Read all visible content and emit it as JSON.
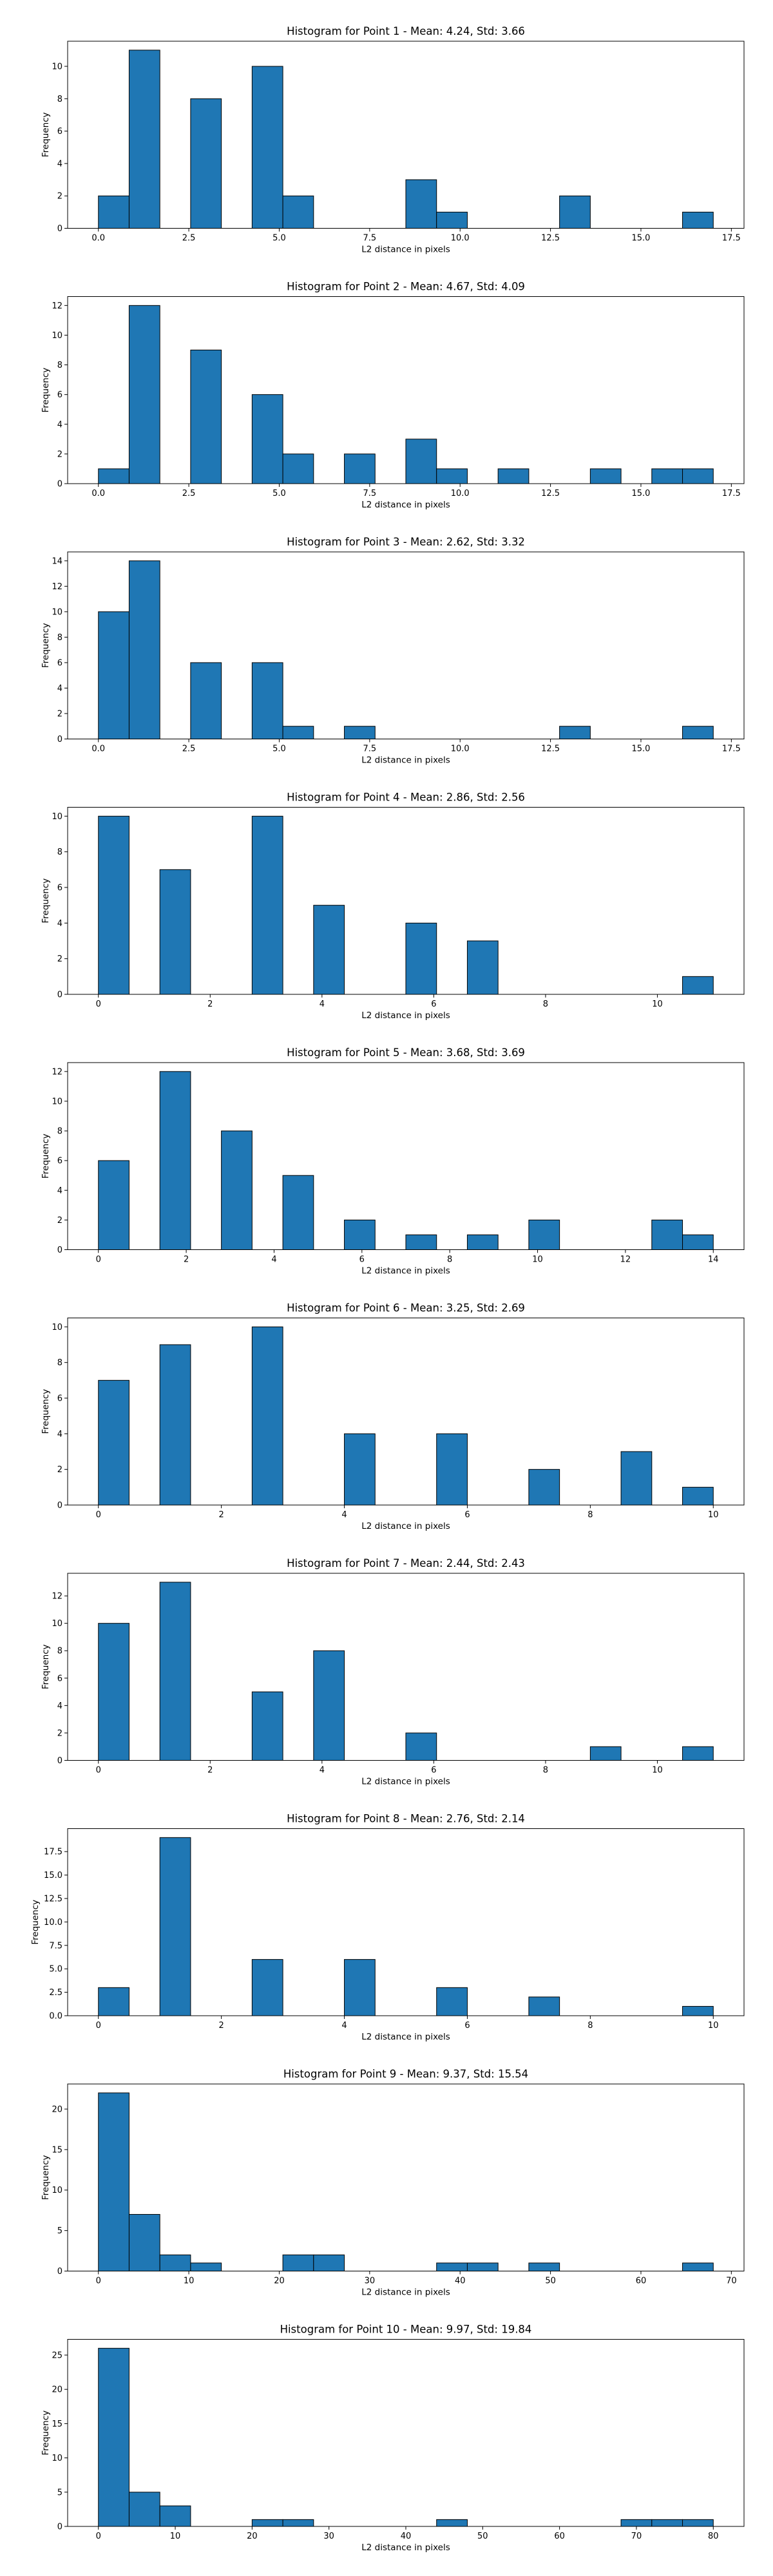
{
  "figure": {
    "background": "#ffffff",
    "bar_color": "#1f77b4",
    "edge_color": "#000000"
  },
  "chart_data": [
    {
      "type": "bar",
      "title": "Histogram for Point 1 - Mean: 4.24, Std: 3.66",
      "xlabel": "L2 distance in pixels",
      "ylabel": "Frequency",
      "xlim": [
        -0.85,
        17.85
      ],
      "ylim": [
        0,
        11.55
      ],
      "xticks": [
        0.0,
        2.5,
        5.0,
        7.5,
        10.0,
        12.5,
        15.0,
        17.5
      ],
      "xtick_labels": [
        "0.0",
        "2.5",
        "5.0",
        "7.5",
        "10.0",
        "12.5",
        "15.0",
        "17.5"
      ],
      "yticks": [
        0,
        2,
        4,
        6,
        8,
        10
      ],
      "ytick_labels": [
        "0",
        "2",
        "4",
        "6",
        "8",
        "10"
      ],
      "bin_width": 0.85,
      "bars": [
        {
          "x": 0,
          "count": 2
        },
        {
          "x": 0.85,
          "count": 11
        },
        {
          "x": 2.55,
          "count": 8
        },
        {
          "x": 4.25,
          "count": 10
        },
        {
          "x": 5.1,
          "count": 2
        },
        {
          "x": 8.5,
          "count": 3
        },
        {
          "x": 9.35,
          "count": 1
        },
        {
          "x": 12.75,
          "count": 2
        },
        {
          "x": 16.15,
          "count": 1
        }
      ]
    },
    {
      "type": "bar",
      "title": "Histogram for Point 2 - Mean: 4.67, Std: 4.09",
      "xlabel": "L2 distance in pixels",
      "ylabel": "Frequency",
      "xlim": [
        -0.85,
        17.85
      ],
      "ylim": [
        0,
        12.6
      ],
      "xticks": [
        0.0,
        2.5,
        5.0,
        7.5,
        10.0,
        12.5,
        15.0,
        17.5
      ],
      "xtick_labels": [
        "0.0",
        "2.5",
        "5.0",
        "7.5",
        "10.0",
        "12.5",
        "15.0",
        "17.5"
      ],
      "yticks": [
        0,
        2,
        4,
        6,
        8,
        10,
        12
      ],
      "ytick_labels": [
        "0",
        "2",
        "4",
        "6",
        "8",
        "10",
        "12"
      ],
      "bin_width": 0.85,
      "bars": [
        {
          "x": 0,
          "count": 1
        },
        {
          "x": 0.85,
          "count": 12
        },
        {
          "x": 2.55,
          "count": 9
        },
        {
          "x": 4.25,
          "count": 6
        },
        {
          "x": 5.1,
          "count": 2
        },
        {
          "x": 6.8,
          "count": 2
        },
        {
          "x": 8.5,
          "count": 3
        },
        {
          "x": 9.35,
          "count": 1
        },
        {
          "x": 11.05,
          "count": 1
        },
        {
          "x": 13.6,
          "count": 1
        },
        {
          "x": 15.3,
          "count": 1
        },
        {
          "x": 16.15,
          "count": 1
        }
      ]
    },
    {
      "type": "bar",
      "title": "Histogram for Point 3 - Mean: 2.62, Std: 3.32",
      "xlabel": "L2 distance in pixels",
      "ylabel": "Frequency",
      "xlim": [
        -0.85,
        17.85
      ],
      "ylim": [
        0,
        14.7
      ],
      "xticks": [
        0.0,
        2.5,
        5.0,
        7.5,
        10.0,
        12.5,
        15.0,
        17.5
      ],
      "xtick_labels": [
        "0.0",
        "2.5",
        "5.0",
        "7.5",
        "10.0",
        "12.5",
        "15.0",
        "17.5"
      ],
      "yticks": [
        0,
        2,
        4,
        6,
        8,
        10,
        12,
        14
      ],
      "ytick_labels": [
        "0",
        "2",
        "4",
        "6",
        "8",
        "10",
        "12",
        "14"
      ],
      "bin_width": 0.85,
      "bars": [
        {
          "x": 0,
          "count": 10
        },
        {
          "x": 0.85,
          "count": 14
        },
        {
          "x": 2.55,
          "count": 6
        },
        {
          "x": 4.25,
          "count": 6
        },
        {
          "x": 5.1,
          "count": 1
        },
        {
          "x": 6.8,
          "count": 1
        },
        {
          "x": 12.75,
          "count": 1
        },
        {
          "x": 16.15,
          "count": 1
        }
      ]
    },
    {
      "type": "bar",
      "title": "Histogram for Point 4 - Mean: 2.86, Std: 2.56",
      "xlabel": "L2 distance in pixels",
      "ylabel": "Frequency",
      "xlim": [
        -0.55,
        11.55
      ],
      "ylim": [
        0,
        10.5
      ],
      "xticks": [
        0,
        2,
        4,
        6,
        8,
        10
      ],
      "xtick_labels": [
        "0",
        "2",
        "4",
        "6",
        "8",
        "10"
      ],
      "yticks": [
        0,
        2,
        4,
        6,
        8,
        10
      ],
      "ytick_labels": [
        "0",
        "2",
        "4",
        "6",
        "8",
        "10"
      ],
      "bin_width": 0.55,
      "bars": [
        {
          "x": 0,
          "count": 10
        },
        {
          "x": 1.1,
          "count": 7
        },
        {
          "x": 2.75,
          "count": 10
        },
        {
          "x": 3.85,
          "count": 5
        },
        {
          "x": 5.5,
          "count": 4
        },
        {
          "x": 6.6,
          "count": 3
        },
        {
          "x": 10.45,
          "count": 1
        }
      ]
    },
    {
      "type": "bar",
      "title": "Histogram for Point 5 - Mean: 3.68, Std: 3.69",
      "xlabel": "L2 distance in pixels",
      "ylabel": "Frequency",
      "xlim": [
        -0.7,
        14.7
      ],
      "ylim": [
        0,
        12.6
      ],
      "xticks": [
        0,
        2,
        4,
        6,
        8,
        10,
        12,
        14
      ],
      "xtick_labels": [
        "0",
        "2",
        "4",
        "6",
        "8",
        "10",
        "12",
        "14"
      ],
      "yticks": [
        0,
        2,
        4,
        6,
        8,
        10,
        12
      ],
      "ytick_labels": [
        "0",
        "2",
        "4",
        "6",
        "8",
        "10",
        "12"
      ],
      "bin_width": 0.7,
      "bars": [
        {
          "x": 0,
          "count": 6
        },
        {
          "x": 1.4,
          "count": 12
        },
        {
          "x": 2.8,
          "count": 8
        },
        {
          "x": 4.2,
          "count": 5
        },
        {
          "x": 5.6,
          "count": 2
        },
        {
          "x": 7.0,
          "count": 1
        },
        {
          "x": 8.4,
          "count": 1
        },
        {
          "x": 9.8,
          "count": 2
        },
        {
          "x": 12.6,
          "count": 2
        },
        {
          "x": 13.3,
          "count": 1
        }
      ]
    },
    {
      "type": "bar",
      "title": "Histogram for Point 6 - Mean: 3.25, Std: 2.69",
      "xlabel": "L2 distance in pixels",
      "ylabel": "Frequency",
      "xlim": [
        -0.5,
        10.5
      ],
      "ylim": [
        0,
        10.5
      ],
      "xticks": [
        0,
        2,
        4,
        6,
        8,
        10
      ],
      "xtick_labels": [
        "0",
        "2",
        "4",
        "6",
        "8",
        "10"
      ],
      "yticks": [
        0,
        2,
        4,
        6,
        8,
        10
      ],
      "ytick_labels": [
        "0",
        "2",
        "4",
        "6",
        "8",
        "10"
      ],
      "bin_width": 0.5,
      "bars": [
        {
          "x": 0,
          "count": 7
        },
        {
          "x": 1.0,
          "count": 9
        },
        {
          "x": 2.5,
          "count": 10
        },
        {
          "x": 4.0,
          "count": 4
        },
        {
          "x": 5.5,
          "count": 4
        },
        {
          "x": 7.0,
          "count": 2
        },
        {
          "x": 8.5,
          "count": 3
        },
        {
          "x": 9.5,
          "count": 1
        }
      ]
    },
    {
      "type": "bar",
      "title": "Histogram for Point 7 - Mean: 2.44, Std: 2.43",
      "xlabel": "L2 distance in pixels",
      "ylabel": "Frequency",
      "xlim": [
        -0.55,
        11.55
      ],
      "ylim": [
        0,
        13.65
      ],
      "xticks": [
        0,
        2,
        4,
        6,
        8,
        10
      ],
      "xtick_labels": [
        "0",
        "2",
        "4",
        "6",
        "8",
        "10"
      ],
      "yticks": [
        0,
        2,
        4,
        6,
        8,
        10,
        12
      ],
      "ytick_labels": [
        "0",
        "2",
        "4",
        "6",
        "8",
        "10",
        "12"
      ],
      "bin_width": 0.55,
      "bars": [
        {
          "x": 0,
          "count": 10
        },
        {
          "x": 1.1,
          "count": 13
        },
        {
          "x": 2.75,
          "count": 5
        },
        {
          "x": 3.85,
          "count": 8
        },
        {
          "x": 5.5,
          "count": 2
        },
        {
          "x": 8.8,
          "count": 1
        },
        {
          "x": 10.45,
          "count": 1
        }
      ]
    },
    {
      "type": "bar",
      "title": "Histogram for Point 8 - Mean: 2.76, Std: 2.14",
      "xlabel": "L2 distance in pixels",
      "ylabel": "Frequency",
      "xlim": [
        -0.5,
        10.5
      ],
      "ylim": [
        0,
        19.95
      ],
      "xticks": [
        0,
        2,
        4,
        6,
        8,
        10
      ],
      "xtick_labels": [
        "0",
        "2",
        "4",
        "6",
        "8",
        "10"
      ],
      "yticks": [
        0,
        2.5,
        5,
        7.5,
        10,
        12.5,
        15,
        17.5
      ],
      "ytick_labels": [
        "0.0",
        "2.5",
        "5.0",
        "7.5",
        "10.0",
        "12.5",
        "15.0",
        "17.5"
      ],
      "bin_width": 0.5,
      "bars": [
        {
          "x": 0,
          "count": 3
        },
        {
          "x": 1.0,
          "count": 19
        },
        {
          "x": 2.5,
          "count": 6
        },
        {
          "x": 4.0,
          "count": 6
        },
        {
          "x": 5.5,
          "count": 3
        },
        {
          "x": 7.0,
          "count": 2
        },
        {
          "x": 9.5,
          "count": 1
        }
      ]
    },
    {
      "type": "bar",
      "title": "Histogram for Point 9 - Mean: 9.37, Std: 15.54",
      "xlabel": "L2 distance in pixels",
      "ylabel": "Frequency",
      "xlim": [
        -3.4,
        71.4
      ],
      "ylim": [
        0,
        23.1
      ],
      "xticks": [
        0,
        10,
        20,
        30,
        40,
        50,
        60,
        70
      ],
      "xtick_labels": [
        "0",
        "10",
        "20",
        "30",
        "40",
        "50",
        "60",
        "70"
      ],
      "yticks": [
        0,
        5,
        10,
        15,
        20
      ],
      "ytick_labels": [
        "0",
        "5",
        "10",
        "15",
        "20"
      ],
      "bin_width": 3.4,
      "bars": [
        {
          "x": 0,
          "count": 22
        },
        {
          "x": 3.4,
          "count": 7
        },
        {
          "x": 6.8,
          "count": 2
        },
        {
          "x": 10.2,
          "count": 1
        },
        {
          "x": 20.4,
          "count": 2
        },
        {
          "x": 23.8,
          "count": 2
        },
        {
          "x": 37.4,
          "count": 1
        },
        {
          "x": 40.8,
          "count": 1
        },
        {
          "x": 47.6,
          "count": 1
        },
        {
          "x": 64.6,
          "count": 1
        }
      ]
    },
    {
      "type": "bar",
      "title": "Histogram for Point 10 - Mean: 9.97, Std: 19.84",
      "xlabel": "L2 distance in pixels",
      "ylabel": "Frequency",
      "xlim": [
        -4.0,
        84.0
      ],
      "ylim": [
        0,
        27.3
      ],
      "xticks": [
        0,
        10,
        20,
        30,
        40,
        50,
        60,
        70,
        80
      ],
      "xtick_labels": [
        "0",
        "10",
        "20",
        "30",
        "40",
        "50",
        "60",
        "70",
        "80"
      ],
      "yticks": [
        0,
        5,
        10,
        15,
        20,
        25
      ],
      "ytick_labels": [
        "0",
        "5",
        "10",
        "15",
        "20",
        "25"
      ],
      "bin_width": 4.0,
      "bars": [
        {
          "x": 0,
          "count": 26
        },
        {
          "x": 4,
          "count": 5
        },
        {
          "x": 8,
          "count": 3
        },
        {
          "x": 20,
          "count": 1
        },
        {
          "x": 24,
          "count": 1
        },
        {
          "x": 44,
          "count": 1
        },
        {
          "x": 68,
          "count": 1
        },
        {
          "x": 72,
          "count": 1
        },
        {
          "x": 76,
          "count": 1
        }
      ]
    }
  ]
}
